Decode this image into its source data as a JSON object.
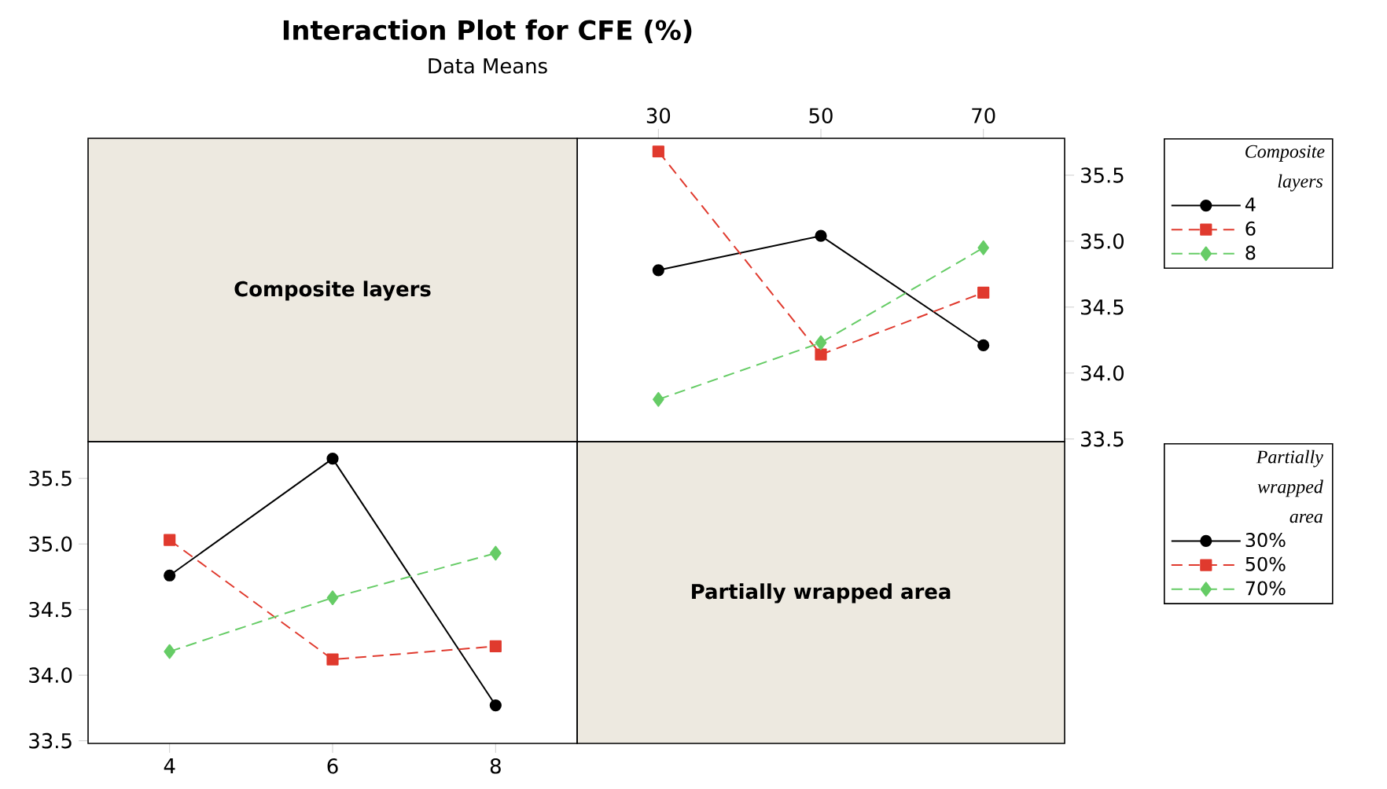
{
  "chart_data": [
    {
      "type": "line",
      "title": "Interaction Plot for CFE (%)",
      "subtitle": "Data Means",
      "xlabel": "Partially wrapped area",
      "legend_title": "Composite layers",
      "x": [
        30,
        50,
        70
      ],
      "xlim": [
        20,
        80
      ],
      "xticks": [
        30,
        50,
        70
      ],
      "ylim": [
        33.48,
        35.78
      ],
      "yticks": [
        {
          "value": 33.5,
          "label": "33.5"
        },
        {
          "value": 34,
          "label": "34.0"
        },
        {
          "value": 34.5,
          "label": "34.5"
        },
        {
          "value": 35,
          "label": "35.0"
        },
        {
          "value": 35.5,
          "label": "35.5"
        }
      ],
      "legend": "right",
      "series": [
        {
          "name": "4",
          "color": "#000000",
          "marker": "circle",
          "line_style": "solid",
          "values": [
            34.78,
            35.04,
            34.21
          ]
        },
        {
          "name": "6",
          "color": "#e03a2e",
          "marker": "square",
          "line_style": "dashed",
          "values": [
            35.68,
            34.14,
            34.61
          ]
        },
        {
          "name": "8",
          "color": "#66cc66",
          "marker": "diamond",
          "line_style": "dashed",
          "values": [
            33.8,
            34.23,
            34.95
          ]
        }
      ]
    },
    {
      "type": "line",
      "xlabel": "Composite layers",
      "legend_title": "Partially wrapped area",
      "x": [
        4,
        6,
        8
      ],
      "xlim": [
        3,
        9
      ],
      "xticks": [
        4,
        6,
        8
      ],
      "ylim": [
        33.48,
        35.78
      ],
      "yticks": [
        {
          "value": 33.5,
          "label": "33.5"
        },
        {
          "value": 34,
          "label": "34.0"
        },
        {
          "value": 34.5,
          "label": "34.5"
        },
        {
          "value": 35,
          "label": "35.0"
        },
        {
          "value": 35.5,
          "label": "35.5"
        }
      ],
      "legend": "right",
      "series": [
        {
          "name": "30%",
          "color": "#000000",
          "marker": "circle",
          "line_style": "solid",
          "values": [
            34.76,
            35.65,
            33.77
          ]
        },
        {
          "name": "50%",
          "color": "#e03a2e",
          "marker": "square",
          "line_style": "dashed",
          "values": [
            35.03,
            34.12,
            34.22
          ]
        },
        {
          "name": "70%",
          "color": "#66cc66",
          "marker": "diamond",
          "line_style": "dashed",
          "values": [
            34.18,
            34.59,
            34.93
          ]
        }
      ]
    }
  ]
}
